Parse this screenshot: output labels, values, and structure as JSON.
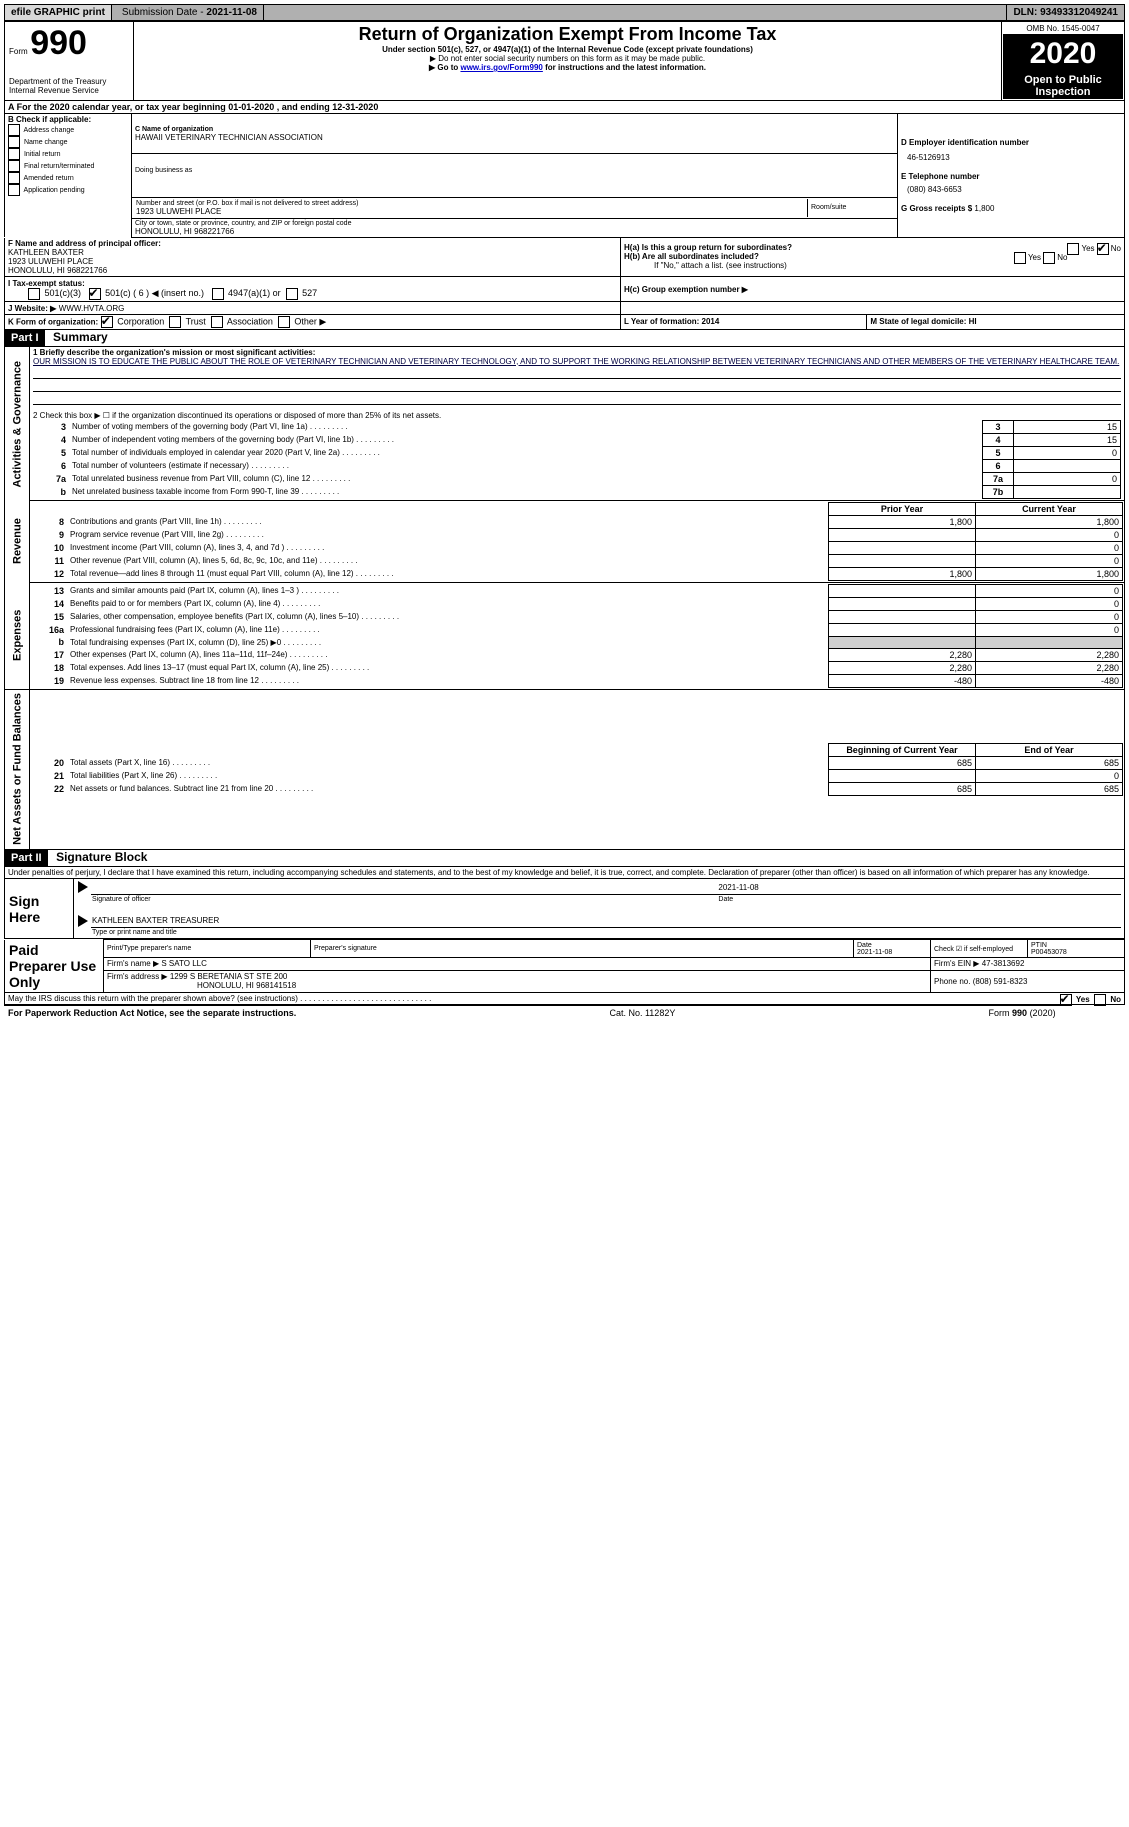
{
  "topbar": {
    "efile": "efile GRAPHIC print",
    "subdate_label": "Submission Date - ",
    "subdate": "2021-11-08",
    "dln_label": "DLN: ",
    "dln": "93493312049241"
  },
  "header": {
    "form_label": "Form",
    "form_no": "990",
    "title": "Return of Organization Exempt From Income Tax",
    "sub1": "Under section 501(c), 527, or 4947(a)(1) of the Internal Revenue Code (except private foundations)",
    "sub2": "▶ Do not enter social security numbers on this form as it may be made public.",
    "sub3_pre": "▶ Go to ",
    "sub3_link": "www.irs.gov/Form990",
    "sub3_post": " for instructions and the latest information.",
    "dept": "Department of the Treasury\nInternal Revenue Service",
    "omb": "OMB No. 1545-0047",
    "year": "2020",
    "open": "Open to Public Inspection"
  },
  "periodA": "A For the 2020 calendar year, or tax year beginning 01-01-2020   , and ending 12-31-2020",
  "boxB": {
    "label": "B Check if applicable:",
    "opts": [
      "Address change",
      "Name change",
      "Initial return",
      "Final return/terminated",
      "Amended return",
      "Application pending"
    ]
  },
  "boxC": {
    "name_lbl": "C Name of organization",
    "name": "HAWAII VETERINARY TECHNICIAN ASSOCIATION",
    "dba_lbl": "Doing business as",
    "dba": "",
    "addr_lbl": "Number and street (or P.O. box if mail is not delivered to street address)",
    "room_lbl": "Room/suite",
    "addr": "1923 ULUWEHI PLACE",
    "city_lbl": "City or town, state or province, country, and ZIP or foreign postal code",
    "city": "HONOLULU, HI  968221766"
  },
  "boxD": {
    "lbl": "D Employer identification number",
    "val": "46-5126913"
  },
  "boxE": {
    "lbl": "E Telephone number",
    "val": "(080) 843-6653"
  },
  "boxG": {
    "lbl": "G Gross receipts $",
    "val": "1,800"
  },
  "boxF": {
    "lbl": "F  Name and address of principal officer:",
    "name": "KATHLEEN BAXTER",
    "l1": "1923 ULUWEHI PLACE",
    "l2": "HONOLULU, HI  968221766"
  },
  "boxH": {
    "a_lbl": "H(a)  Is this a group return for subordinates?",
    "b_lbl": "H(b)  Are all subordinates included?",
    "b_note": "If \"No,\" attach a list. (see instructions)",
    "c_lbl": "H(c)  Group exemption number ▶",
    "yes": "Yes",
    "no": "No"
  },
  "boxI": {
    "lbl": "I   Tax-exempt status:",
    "o1": "501(c)(3)",
    "o2": "501(c) ( 6 ) ◀ (insert no.)",
    "o3": "4947(a)(1) or",
    "o4": "527"
  },
  "boxJ": {
    "lbl": "J   Website: ▶",
    "val": "WWW.HVTA.ORG"
  },
  "boxK": {
    "lbl": "K Form of organization:",
    "o1": "Corporation",
    "o2": "Trust",
    "o3": "Association",
    "o4": "Other ▶"
  },
  "boxL": "L Year of formation: 2014",
  "boxM": "M State of legal domicile: HI",
  "part1": {
    "hdr": "Part I",
    "title": "Summary",
    "l1_lbl": "1  Briefly describe the organization's mission or most significant activities:",
    "l1_text": "OUR MISSION IS TO EDUCATE THE PUBLIC ABOUT THE ROLE OF VETERINARY TECHNICIAN AND VETERINARY TECHNOLOGY, AND TO SUPPORT THE WORKING RELATIONSHIP BETWEEN VETERINARY TECHNICIANS AND OTHER MEMBERS OF THE VETERINARY HEALTHCARE TEAM.",
    "l2": "2   Check this box ▶ ☐  if the organization discontinued its operations or disposed of more than 25% of its net assets.",
    "rows_single": [
      {
        "n": "3",
        "t": "Number of voting members of the governing body (Part VI, line 1a)",
        "box": "3",
        "v": "15"
      },
      {
        "n": "4",
        "t": "Number of independent voting members of the governing body (Part VI, line 1b)",
        "box": "4",
        "v": "15"
      },
      {
        "n": "5",
        "t": "Total number of individuals employed in calendar year 2020 (Part V, line 2a)",
        "box": "5",
        "v": "0"
      },
      {
        "n": "6",
        "t": "Total number of volunteers (estimate if necessary)",
        "box": "6",
        "v": ""
      },
      {
        "n": "7a",
        "t": "Total unrelated business revenue from Part VIII, column (C), line 12",
        "box": "7a",
        "v": "0"
      },
      {
        "n": "b",
        "t": "Net unrelated business taxable income from Form 990-T, line 39",
        "box": "7b",
        "v": ""
      }
    ],
    "col_prior": "Prior Year",
    "col_curr": "Current Year",
    "revenue": [
      {
        "n": "8",
        "t": "Contributions and grants (Part VIII, line 1h)",
        "p": "1,800",
        "c": "1,800"
      },
      {
        "n": "9",
        "t": "Program service revenue (Part VIII, line 2g)",
        "p": "",
        "c": "0"
      },
      {
        "n": "10",
        "t": "Investment income (Part VIII, column (A), lines 3, 4, and 7d )",
        "p": "",
        "c": "0"
      },
      {
        "n": "11",
        "t": "Other revenue (Part VIII, column (A), lines 5, 6d, 8c, 9c, 10c, and 11e)",
        "p": "",
        "c": "0"
      },
      {
        "n": "12",
        "t": "Total revenue—add lines 8 through 11 (must equal Part VIII, column (A), line 12)",
        "p": "1,800",
        "c": "1,800"
      }
    ],
    "expenses": [
      {
        "n": "13",
        "t": "Grants and similar amounts paid (Part IX, column (A), lines 1–3 )",
        "p": "",
        "c": "0"
      },
      {
        "n": "14",
        "t": "Benefits paid to or for members (Part IX, column (A), line 4)",
        "p": "",
        "c": "0"
      },
      {
        "n": "15",
        "t": "Salaries, other compensation, employee benefits (Part IX, column (A), lines 5–10)",
        "p": "",
        "c": "0"
      },
      {
        "n": "16a",
        "t": "Professional fundraising fees (Part IX, column (A), line 11e)",
        "p": "",
        "c": "0"
      },
      {
        "n": "b",
        "t": "Total fundraising expenses (Part IX, column (D), line 25) ▶0",
        "p": "GREY",
        "c": "GREY"
      },
      {
        "n": "17",
        "t": "Other expenses (Part IX, column (A), lines 11a–11d, 11f–24e)",
        "p": "2,280",
        "c": "2,280"
      },
      {
        "n": "18",
        "t": "Total expenses. Add lines 13–17 (must equal Part IX, column (A), line 25)",
        "p": "2,280",
        "c": "2,280"
      },
      {
        "n": "19",
        "t": "Revenue less expenses. Subtract line 18 from line 12",
        "p": "-480",
        "c": "-480"
      }
    ],
    "col_beg": "Beginning of Current Year",
    "col_end": "End of Year",
    "net": [
      {
        "n": "20",
        "t": "Total assets (Part X, line 16)",
        "p": "685",
        "c": "685"
      },
      {
        "n": "21",
        "t": "Total liabilities (Part X, line 26)",
        "p": "",
        "c": "0"
      },
      {
        "n": "22",
        "t": "Net assets or fund balances. Subtract line 21 from line 20",
        "p": "685",
        "c": "685"
      }
    ],
    "side_gov": "Activities & Governance",
    "side_rev": "Revenue",
    "side_exp": "Expenses",
    "side_net": "Net Assets or Fund Balances"
  },
  "part2": {
    "hdr": "Part II",
    "title": "Signature Block",
    "perjury": "Under penalties of perjury, I declare that I have examined this return, including accompanying schedules and statements, and to the best of my knowledge and belief, it is true, correct, and complete. Declaration of preparer (other than officer) is based on all information of which preparer has any knowledge.",
    "sign_here": "Sign Here",
    "sig_officer": "Signature of officer",
    "sig_date": "2021-11-08",
    "date_lbl": "Date",
    "officer_name": "KATHLEEN BAXTER  TREASURER",
    "type_lbl": "Type or print name and title",
    "paid": "Paid Preparer Use Only",
    "pp_name_lbl": "Print/Type preparer's name",
    "pp_sig_lbl": "Preparer's signature",
    "pp_date_lbl": "Date",
    "pp_date": "2021-11-08",
    "pp_check_lbl": "Check ☑ if self-employed",
    "ptin_lbl": "PTIN",
    "ptin": "P00453078",
    "firm_name_lbl": "Firm's name  ▶",
    "firm_name": "S SATO LLC",
    "firm_ein_lbl": "Firm's EIN ▶",
    "firm_ein": "47-3813692",
    "firm_addr_lbl": "Firm's address ▶",
    "firm_addr": "1299 S BERETANIA ST STE 200",
    "firm_city": "HONOLULU, HI  968141518",
    "phone_lbl": "Phone no.",
    "phone": "(808) 591-8323",
    "discuss": "May the IRS discuss this return with the preparer shown above? (see instructions)"
  },
  "footer": {
    "pra": "For Paperwork Reduction Act Notice, see the separate instructions.",
    "cat": "Cat. No. 11282Y",
    "form": "Form 990 (2020)"
  }
}
